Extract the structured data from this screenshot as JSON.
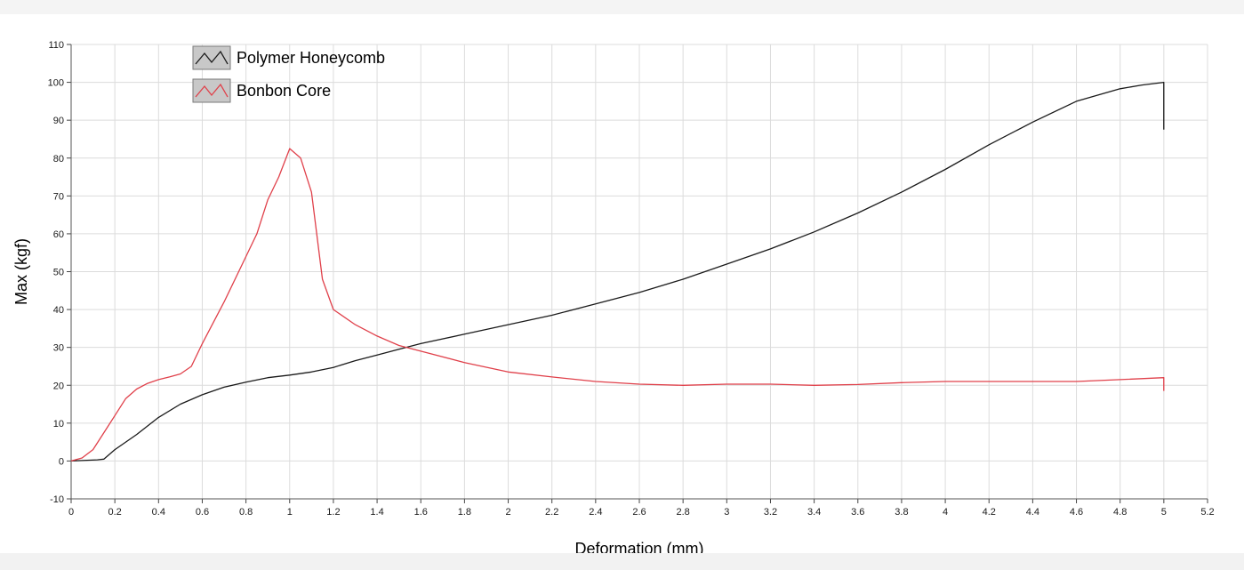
{
  "chart_data": {
    "type": "line",
    "xlabel": "Deformation (mm)",
    "ylabel": "Max (kgf)",
    "xlim": [
      0,
      5.2
    ],
    "ylim": [
      -10,
      110
    ],
    "x_ticks": [
      0,
      0.2,
      0.4,
      0.6,
      0.8,
      1,
      1.2,
      1.4,
      1.6,
      1.8,
      2,
      2.2,
      2.4,
      2.6,
      2.8,
      3,
      3.2,
      3.4,
      3.6,
      3.8,
      4,
      4.2,
      4.4,
      4.6,
      4.8,
      5,
      5.2
    ],
    "y_ticks": [
      -10,
      0,
      10,
      20,
      30,
      40,
      50,
      60,
      70,
      80,
      90,
      100,
      110
    ],
    "grid": true,
    "legend_position": "top-left",
    "series": [
      {
        "name": "Polymer Honeycomb",
        "color": "#1a1a1a",
        "points": [
          [
            0,
            0
          ],
          [
            0.12,
            0.3
          ],
          [
            0.15,
            0.5
          ],
          [
            0.2,
            3
          ],
          [
            0.3,
            7
          ],
          [
            0.4,
            11.5
          ],
          [
            0.5,
            15
          ],
          [
            0.6,
            17.5
          ],
          [
            0.7,
            19.5
          ],
          [
            0.8,
            20.8
          ],
          [
            0.9,
            22
          ],
          [
            1.0,
            22.7
          ],
          [
            1.1,
            23.5
          ],
          [
            1.2,
            24.7
          ],
          [
            1.3,
            26.5
          ],
          [
            1.4,
            28
          ],
          [
            1.5,
            29.5
          ],
          [
            1.6,
            31
          ],
          [
            1.8,
            33.5
          ],
          [
            2.0,
            36
          ],
          [
            2.2,
            38.5
          ],
          [
            2.4,
            41.5
          ],
          [
            2.6,
            44.5
          ],
          [
            2.8,
            48
          ],
          [
            3.0,
            52
          ],
          [
            3.2,
            56
          ],
          [
            3.4,
            60.5
          ],
          [
            3.6,
            65.5
          ],
          [
            3.8,
            71
          ],
          [
            4.0,
            77
          ],
          [
            4.2,
            83.5
          ],
          [
            4.4,
            89.5
          ],
          [
            4.6,
            95
          ],
          [
            4.8,
            98.3
          ],
          [
            4.9,
            99.3
          ],
          [
            5.0,
            100
          ],
          [
            5.0,
            87.5
          ]
        ]
      },
      {
        "name": "Bonbon Core",
        "color": "#e0404a",
        "points": [
          [
            0,
            0
          ],
          [
            0.05,
            0.8
          ],
          [
            0.1,
            3
          ],
          [
            0.15,
            7.5
          ],
          [
            0.2,
            12
          ],
          [
            0.25,
            16.5
          ],
          [
            0.3,
            19
          ],
          [
            0.35,
            20.5
          ],
          [
            0.4,
            21.5
          ],
          [
            0.45,
            22.2
          ],
          [
            0.5,
            23
          ],
          [
            0.55,
            25
          ],
          [
            0.6,
            31
          ],
          [
            0.7,
            42
          ],
          [
            0.8,
            54
          ],
          [
            0.85,
            60
          ],
          [
            0.9,
            69
          ],
          [
            0.95,
            75
          ],
          [
            1.0,
            82.5
          ],
          [
            1.05,
            80
          ],
          [
            1.1,
            71
          ],
          [
            1.15,
            48
          ],
          [
            1.2,
            40
          ],
          [
            1.3,
            36
          ],
          [
            1.4,
            33
          ],
          [
            1.5,
            30.5
          ],
          [
            1.6,
            29
          ],
          [
            1.8,
            26
          ],
          [
            2.0,
            23.5
          ],
          [
            2.2,
            22.2
          ],
          [
            2.4,
            21
          ],
          [
            2.6,
            20.3
          ],
          [
            2.8,
            20
          ],
          [
            3.0,
            20.3
          ],
          [
            3.2,
            20.3
          ],
          [
            3.4,
            20
          ],
          [
            3.6,
            20.2
          ],
          [
            3.8,
            20.7
          ],
          [
            4.0,
            21
          ],
          [
            4.2,
            21
          ],
          [
            4.4,
            21
          ],
          [
            4.6,
            21
          ],
          [
            4.8,
            21.5
          ],
          [
            5.0,
            22
          ],
          [
            5.0,
            18.5
          ]
        ]
      }
    ]
  }
}
